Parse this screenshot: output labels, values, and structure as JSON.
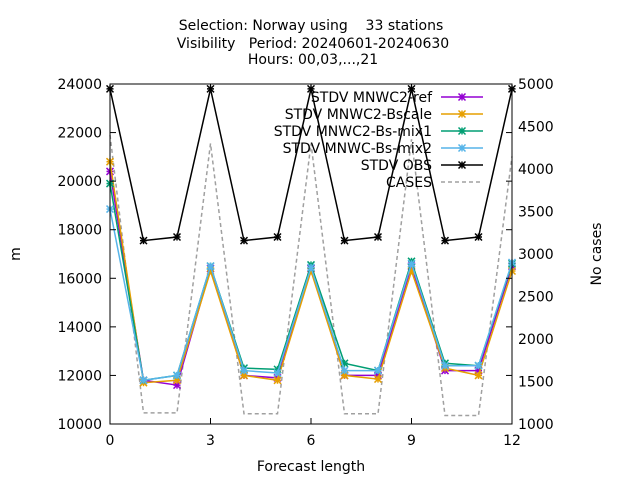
{
  "chart_data": {
    "type": "line",
    "title_lines": [
      "Selection: Norway using    33 stations",
      "Visibility   Period: 20240601-20240630",
      "Hours: 00,03,...,21"
    ],
    "xlabel": "Forecast length",
    "ylabel": "m",
    "y2label": "No cases",
    "xlim": [
      0,
      12
    ],
    "ylim": [
      10000,
      24000
    ],
    "y2lim": [
      1000,
      5000
    ],
    "xticks": [
      0,
      3,
      6,
      9,
      12
    ],
    "yticks": [
      10000,
      12000,
      14000,
      16000,
      18000,
      20000,
      22000,
      24000
    ],
    "y2ticks": [
      1000,
      1500,
      2000,
      2500,
      3000,
      3500,
      4000,
      4500,
      5000
    ],
    "grid": false,
    "legend_position": "top-right",
    "x": [
      0,
      1,
      2,
      3,
      4,
      5,
      6,
      7,
      8,
      9,
      10,
      11,
      12
    ],
    "series": [
      {
        "name": "STDV MNWC2-ref",
        "axis": "y",
        "color": "#9400d3",
        "marker": "x",
        "dashed": false,
        "values": [
          20400,
          11800,
          11600,
          16400,
          12000,
          11900,
          16400,
          12000,
          12000,
          16500,
          12200,
          12200,
          16500
        ]
      },
      {
        "name": "STDV MNWC2-Bscale",
        "axis": "y",
        "color": "#e69f00",
        "marker": "x",
        "dashed": false,
        "values": [
          20800,
          11700,
          11800,
          16300,
          12000,
          11800,
          16300,
          12000,
          11850,
          16300,
          12300,
          12000,
          16300
        ]
      },
      {
        "name": "STDV MNWC2-Bs-mix1",
        "axis": "y",
        "color": "#009e73",
        "marker": "x",
        "dashed": false,
        "values": [
          19900,
          11800,
          12000,
          16500,
          12300,
          12250,
          16550,
          12500,
          12200,
          16700,
          12500,
          12400,
          16600
        ]
      },
      {
        "name": "STDV MNWC-Bs-mix2",
        "axis": "y",
        "color": "#56b4e9",
        "marker": "x",
        "dashed": false,
        "values": [
          18850,
          11800,
          12000,
          16500,
          12200,
          12100,
          16450,
          12200,
          12200,
          16600,
          12400,
          12400,
          16650
        ]
      },
      {
        "name": "STDV OBS",
        "axis": "y",
        "color": "#000000",
        "marker": "x",
        "dashed": false,
        "values": [
          23800,
          17550,
          17700,
          23800,
          17550,
          17700,
          23800,
          17550,
          17700,
          23800,
          17550,
          17700,
          23800
        ]
      },
      {
        "name": "CASES",
        "axis": "y2",
        "color": "#a0a0a0",
        "marker": "none",
        "dashed": true,
        "values": [
          4400,
          1130,
          1130,
          4300,
          1120,
          1120,
          4300,
          1120,
          1120,
          4350,
          1100,
          1100,
          4150
        ]
      }
    ]
  }
}
